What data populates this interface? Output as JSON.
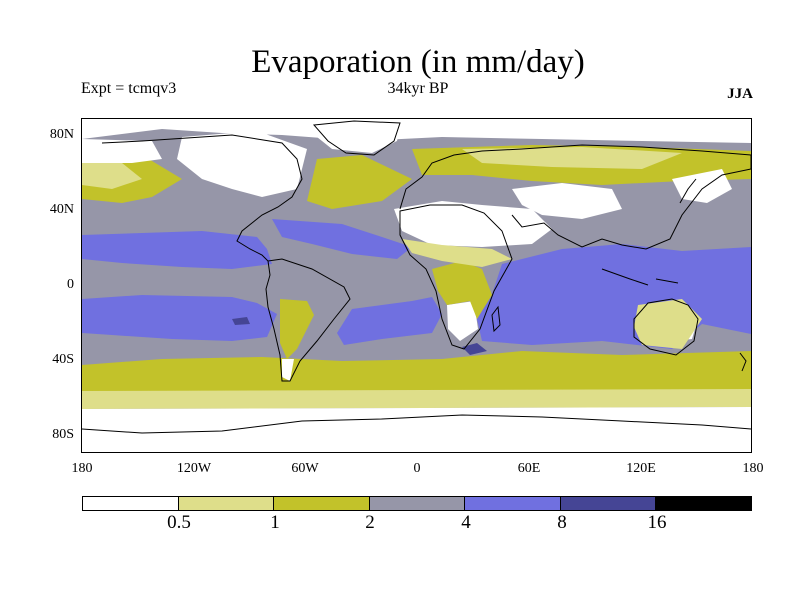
{
  "title": "Evaporation (in mm/day)",
  "experiment_label": "Expt = tcmqv3",
  "period_label": "34kyr BP",
  "season_label": "JJA",
  "y_ticks": [
    "80N",
    "40N",
    "0",
    "40S",
    "80S"
  ],
  "x_ticks": [
    "180",
    "120W",
    "60W",
    "0",
    "60E",
    "120E",
    "180"
  ],
  "colorbar": {
    "colors": [
      "#ffffff",
      "#dede8a",
      "#c2c22a",
      "#9696a8",
      "#7070e0",
      "#454595",
      "#000000"
    ],
    "labels": [
      "0.5",
      "1",
      "2",
      "4",
      "8",
      "16"
    ]
  },
  "chart_data": {
    "type": "heatmap",
    "title": "Evaporation (in mm/day)",
    "xlim": [
      -180,
      180
    ],
    "ylim": [
      -90,
      90
    ],
    "levels": [
      0.5,
      1,
      2,
      4,
      8,
      16
    ],
    "classes": [
      "<0.5",
      "0.5-1",
      "1-2",
      "2-4",
      "4-8",
      "8-16",
      ">16"
    ]
  }
}
